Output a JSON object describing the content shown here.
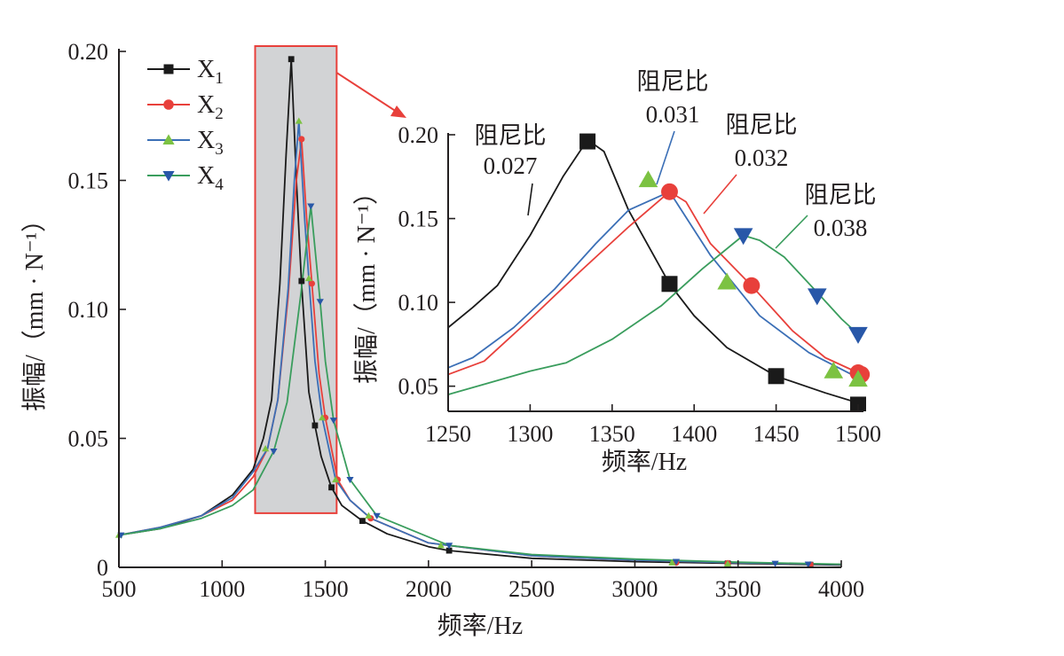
{
  "colors": {
    "X1": "#1a1a1a",
    "X2": "#e8403b",
    "X3": "#3b6fb6",
    "X4": "#3a9d5d",
    "X3_marker": "#7cc242",
    "X4_marker": "#2857a8",
    "highlight_fill": "#d2d3d5",
    "highlight_stroke": "#e8403b",
    "axis": "#231f20"
  },
  "chart_data": [
    {
      "id": "main",
      "type": "line",
      "xlabel": "频率/Hz",
      "ylabel": "振幅/（mm · N⁻¹）",
      "xlim": [
        500,
        4000
      ],
      "ylim": [
        0,
        0.2
      ],
      "x_ticks": [
        500,
        1000,
        1500,
        2000,
        2500,
        3000,
        3500,
        4000
      ],
      "y_ticks": [
        0,
        0.05,
        0.1,
        0.15,
        0.2
      ],
      "x_tick_labels": [
        "500",
        "1000",
        "1500",
        "2000",
        "2500",
        "3000",
        "3500",
        "4000"
      ],
      "y_tick_labels": [
        "0",
        "0.05",
        "0.10",
        "0.15",
        "0.20"
      ],
      "legend": {
        "placement": "top-left",
        "entries": [
          "X1",
          "X2",
          "X3",
          "X4"
        ]
      },
      "highlight_region": {
        "x": [
          1160,
          1555
        ],
        "y": [
          0.021,
          0.2
        ]
      },
      "series": [
        {
          "name": "X1",
          "marker": "square",
          "x": [
            500,
            700,
            900,
            1050,
            1150,
            1200,
            1240,
            1280,
            1310,
            1335,
            1360,
            1385,
            1420,
            1450,
            1480,
            1530,
            1580,
            1680,
            1800,
            2000,
            2100,
            2500,
            3000,
            3500,
            4000
          ],
          "y": [
            0.0125,
            0.015,
            0.02,
            0.028,
            0.038,
            0.05,
            0.065,
            0.11,
            0.16,
            0.197,
            0.15,
            0.11,
            0.068,
            0.055,
            0.043,
            0.031,
            0.024,
            0.018,
            0.013,
            0.008,
            0.0065,
            0.0035,
            0.0022,
            0.0015,
            0.0009
          ],
          "marker_x": [
            1335,
            1385,
            1450,
            1530,
            1680,
            2100,
            3450,
            3850
          ],
          "marker_y": [
            0.197,
            0.111,
            0.055,
            0.031,
            0.018,
            0.0065,
            0.0015,
            0.001
          ]
        },
        {
          "name": "X2",
          "marker": "circle",
          "x": [
            500,
            700,
            900,
            1050,
            1150,
            1220,
            1270,
            1320,
            1360,
            1385,
            1410,
            1435,
            1470,
            1500,
            1560,
            1620,
            1720,
            2000,
            2500,
            3000,
            3500,
            4000
          ],
          "y": [
            0.0125,
            0.0155,
            0.02,
            0.026,
            0.035,
            0.046,
            0.065,
            0.105,
            0.15,
            0.166,
            0.135,
            0.11,
            0.075,
            0.058,
            0.034,
            0.026,
            0.019,
            0.0095,
            0.0045,
            0.0028,
            0.0018,
            0.0011
          ],
          "marker_x": [
            1385,
            1435,
            1500,
            1560,
            1720,
            3200,
            3450,
            3850
          ],
          "marker_y": [
            0.166,
            0.11,
            0.058,
            0.034,
            0.019,
            0.0018,
            0.0016,
            0.0011
          ]
        },
        {
          "name": "X3",
          "marker": "triangle-up",
          "x": [
            500,
            700,
            900,
            1050,
            1150,
            1220,
            1270,
            1320,
            1350,
            1372,
            1400,
            1420,
            1450,
            1485,
            1550,
            1620,
            1720,
            2000,
            2500,
            3000,
            3500,
            4000
          ],
          "y": [
            0.0125,
            0.0155,
            0.02,
            0.027,
            0.037,
            0.046,
            0.065,
            0.108,
            0.15,
            0.173,
            0.135,
            0.112,
            0.08,
            0.058,
            0.034,
            0.026,
            0.019,
            0.0095,
            0.0045,
            0.0028,
            0.0018,
            0.0011
          ],
          "marker_x": [
            500,
            1210,
            1372,
            1420,
            1485,
            1550,
            1710,
            2060,
            3180,
            3450
          ],
          "marker_y": [
            0.0125,
            0.046,
            0.173,
            0.112,
            0.058,
            0.034,
            0.02,
            0.0085,
            0.0018,
            0.0014
          ]
        },
        {
          "name": "X4",
          "marker": "triangle-down",
          "x": [
            500,
            700,
            900,
            1050,
            1150,
            1250,
            1315,
            1380,
            1430,
            1475,
            1500,
            1540,
            1620,
            1750,
            2100,
            2500,
            3000,
            3500,
            4000
          ],
          "y": [
            0.0125,
            0.015,
            0.019,
            0.024,
            0.03,
            0.045,
            0.064,
            0.105,
            0.14,
            0.103,
            0.08,
            0.057,
            0.034,
            0.02,
            0.0085,
            0.005,
            0.0032,
            0.002,
            0.0012
          ],
          "marker_x": [
            510,
            1250,
            1430,
            1475,
            1540,
            1620,
            1750,
            2100,
            3200,
            3680,
            3840
          ],
          "marker_y": [
            0.0125,
            0.045,
            0.14,
            0.103,
            0.057,
            0.034,
            0.02,
            0.0085,
            0.0022,
            0.0015,
            0.0012
          ]
        }
      ]
    },
    {
      "id": "inset",
      "type": "line",
      "xlabel": "频率/Hz",
      "ylabel": "振幅/（mm · N⁻¹）",
      "xlim": [
        1250,
        1500
      ],
      "ylim": [
        0.035,
        0.2
      ],
      "x_ticks": [
        1250,
        1300,
        1350,
        1400,
        1450,
        1500
      ],
      "y_ticks": [
        0.05,
        0.1,
        0.15,
        0.2
      ],
      "x_tick_labels": [
        "1250",
        "1300",
        "1350",
        "1400",
        "1450",
        "1500"
      ],
      "y_tick_labels": [
        "0.05",
        "0.10",
        "0.15",
        "0.20"
      ],
      "annotations": [
        {
          "label": "阻尼比",
          "value": "0.027",
          "series": "X1"
        },
        {
          "label": "阻尼比",
          "value": "0.031",
          "series": "X3"
        },
        {
          "label": "阻尼比",
          "value": "0.032",
          "series": "X2"
        },
        {
          "label": "阻尼比",
          "value": "0.038",
          "series": "X4"
        }
      ],
      "series": [
        {
          "name": "X1",
          "marker": "square",
          "x": [
            1250,
            1265,
            1280,
            1300,
            1320,
            1335,
            1345,
            1360,
            1385,
            1400,
            1420,
            1450,
            1480,
            1500
          ],
          "y": [
            0.085,
            0.097,
            0.11,
            0.14,
            0.175,
            0.197,
            0.19,
            0.155,
            0.111,
            0.092,
            0.073,
            0.056,
            0.046,
            0.04
          ],
          "marker_x": [
            1335,
            1385,
            1450,
            1500
          ],
          "marker_y": [
            0.196,
            0.111,
            0.056,
            0.039
          ]
        },
        {
          "name": "X2",
          "marker": "circle",
          "x": [
            1250,
            1272,
            1300,
            1330,
            1360,
            1385,
            1395,
            1410,
            1435,
            1460,
            1480,
            1500
          ],
          "y": [
            0.057,
            0.065,
            0.09,
            0.118,
            0.145,
            0.166,
            0.16,
            0.135,
            0.11,
            0.083,
            0.067,
            0.058
          ],
          "marker_x": [
            1385,
            1435,
            1500,
            1502
          ],
          "marker_y": [
            0.166,
            0.11,
            0.058,
            0.057
          ]
        },
        {
          "name": "X3",
          "marker": "triangle-up",
          "x": [
            1250,
            1265,
            1290,
            1315,
            1340,
            1360,
            1385,
            1410,
            1440,
            1470,
            1500
          ],
          "y": [
            0.061,
            0.067,
            0.085,
            0.108,
            0.135,
            0.155,
            0.166,
            0.128,
            0.092,
            0.07,
            0.055
          ],
          "marker_x": [
            1372,
            1420,
            1485,
            1500
          ],
          "marker_y": [
            0.173,
            0.112,
            0.059,
            0.054
          ]
        },
        {
          "name": "X4",
          "marker": "triangle-down",
          "x": [
            1250,
            1275,
            1300,
            1322,
            1350,
            1380,
            1405,
            1430,
            1440,
            1455,
            1475,
            1490,
            1500
          ],
          "y": [
            0.045,
            0.052,
            0.059,
            0.064,
            0.078,
            0.098,
            0.12,
            0.14,
            0.137,
            0.127,
            0.106,
            0.09,
            0.081
          ],
          "marker_x": [
            1430,
            1475,
            1500
          ],
          "marker_y": [
            0.14,
            0.104,
            0.081
          ]
        }
      ]
    }
  ]
}
